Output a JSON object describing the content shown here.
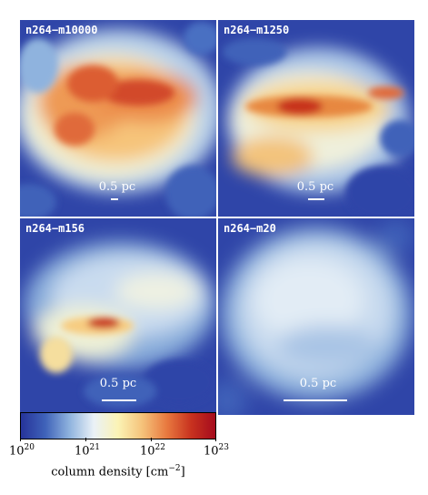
{
  "panels": [
    {
      "label": "n264−m10000",
      "scale": "0.5 pc"
    },
    {
      "label": "n264−m1250",
      "scale": "0.5 pc"
    },
    {
      "label": "n264−m156",
      "scale": "0.5 pc"
    },
    {
      "label": "n264−m20",
      "scale": "0.5 pc"
    }
  ],
  "colorbar": {
    "label_text": "column density [cm",
    "label_exp": "−2",
    "label_close": "]",
    "ticks": [
      {
        "base": "10",
        "exp": "20"
      },
      {
        "base": "10",
        "exp": "21"
      },
      {
        "base": "10",
        "exp": "22"
      },
      {
        "base": "10",
        "exp": "23"
      }
    ],
    "colors": [
      "#26339a",
      "#3f62b9",
      "#8fb3de",
      "#eaf1f7",
      "#fbf3b5",
      "#f5c27a",
      "#e8793f",
      "#c8321f",
      "#a50b1d"
    ]
  }
}
